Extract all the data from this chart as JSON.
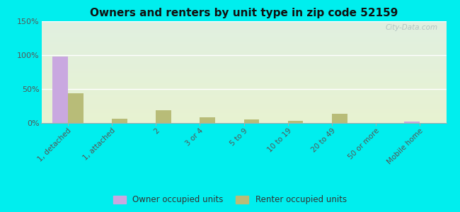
{
  "title": "Owners and renters by unit type in zip code 52159",
  "categories": [
    "1, detached",
    "1, attached",
    "2",
    "3 or 4",
    "5 to 9",
    "10 to 19",
    "20 to 49",
    "50 or more",
    "Mobile home"
  ],
  "owner_values": [
    98,
    0,
    0,
    0,
    0,
    0,
    0,
    0,
    2
  ],
  "renter_values": [
    44,
    6,
    19,
    8,
    5,
    3,
    14,
    0,
    0
  ],
  "owner_color": "#c9a8e0",
  "renter_color": "#b8bc78",
  "ylim": [
    0,
    150
  ],
  "yticks": [
    0,
    50,
    100,
    150
  ],
  "ytick_labels": [
    "0%",
    "50%",
    "100%",
    "150%"
  ],
  "outer_bg": "#00eeee",
  "watermark": "City-Data.com",
  "bar_width": 0.35,
  "bg_color_top": "#dce8d0",
  "bg_color_bottom": "#eef4dc",
  "bg_color_topleft": "#ccdccc",
  "bg_color_topright": "#e8eee8"
}
